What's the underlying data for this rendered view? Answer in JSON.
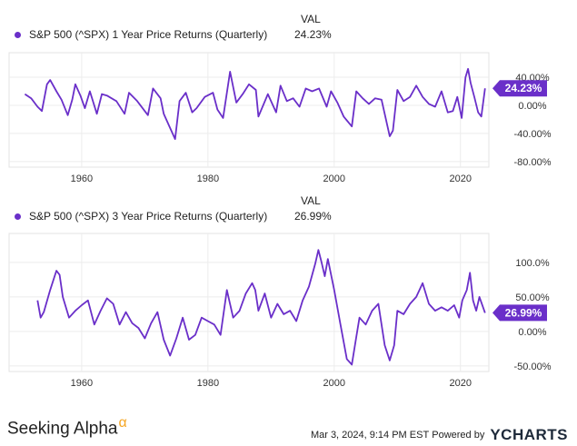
{
  "chart_data": [
    {
      "type": "line",
      "val_header": "VAL",
      "title": "S&P 500 (^SPX) 1 Year Price Returns (Quarterly)",
      "current_value": "24.23%",
      "color": "#6a2fc9",
      "x_ticks": [
        "1960",
        "1980",
        "2000",
        "2020"
      ],
      "x_tick_values": [
        1960,
        1980,
        2000,
        2020
      ],
      "xlim": [
        1948.5,
        2024.5
      ],
      "y_ticks": [
        "40.00%",
        "0.00%",
        "-40.00%",
        "-80.00%"
      ],
      "y_tick_values": [
        40,
        0,
        -40,
        -80
      ],
      "ylim": [
        -88,
        75
      ],
      "x": [
        1951,
        1952,
        1953,
        1953.7,
        1954.5,
        1955,
        1956,
        1956.8,
        1957.8,
        1958.5,
        1959,
        1959.8,
        1960.5,
        1961.3,
        1962.4,
        1963.2,
        1964,
        1965.5,
        1966.8,
        1967.5,
        1968.8,
        1970.5,
        1971.3,
        1972.5,
        1973,
        1974.8,
        1975.5,
        1976.5,
        1977.5,
        1978.2,
        1979.5,
        1980.8,
        1981.5,
        1982.4,
        1983.5,
        1984.5,
        1985.5,
        1986.5,
        1987.6,
        1988,
        1989.5,
        1990.8,
        1991.5,
        1992.5,
        1993.5,
        1994.5,
        1995.5,
        1996.5,
        1997.6,
        1998.8,
        1999.5,
        2000.5,
        2001.5,
        2002.8,
        2003.5,
        2004.5,
        2005.5,
        2006.5,
        2007.5,
        2008.8,
        2009.3,
        2010,
        2011,
        2012,
        2013,
        2014,
        2015,
        2016,
        2017,
        2018,
        2018.8,
        2019.5,
        2020.2,
        2020.8,
        2021.2,
        2021.6,
        2022.2,
        2022.8,
        2023.3,
        2023.9
      ],
      "values": [
        16,
        10,
        -2,
        -8,
        30,
        36,
        20,
        8,
        -14,
        8,
        30,
        14,
        -4,
        20,
        -12,
        16,
        14,
        6,
        -12,
        18,
        6,
        -14,
        24,
        10,
        -12,
        -48,
        6,
        18,
        -10,
        -4,
        12,
        18,
        -6,
        -18,
        48,
        4,
        16,
        30,
        22,
        -16,
        16,
        -10,
        28,
        6,
        10,
        -2,
        24,
        20,
        24,
        -2,
        20,
        4,
        -16,
        -30,
        20,
        10,
        2,
        10,
        8,
        -44,
        -36,
        22,
        6,
        12,
        28,
        12,
        2,
        -2,
        20,
        -10,
        -8,
        12,
        -18,
        40,
        52,
        32,
        12,
        -10,
        -16,
        24.23
      ],
      "annotation_value": 24.23
    },
    {
      "type": "line",
      "val_header": "VAL",
      "title": "S&P 500 (^SPX) 3 Year Price Returns (Quarterly)",
      "current_value": "26.99%",
      "color": "#6a2fc9",
      "x_ticks": [
        "1960",
        "1980",
        "2000",
        "2020"
      ],
      "x_tick_values": [
        1960,
        1980,
        2000,
        2020
      ],
      "xlim": [
        1948.5,
        2024.5
      ],
      "y_ticks": [
        "100.0%",
        "50.00%",
        "0.00%",
        "-50.00%"
      ],
      "y_tick_values": [
        100,
        50,
        0,
        -50
      ],
      "ylim": [
        -58,
        142
      ],
      "x": [
        1953,
        1953.5,
        1954,
        1955,
        1956,
        1956.5,
        1957,
        1958,
        1959,
        1960,
        1961,
        1962,
        1963,
        1964,
        1965,
        1966,
        1967,
        1968,
        1969,
        1970,
        1971,
        1972,
        1973,
        1974,
        1975,
        1976,
        1977,
        1978,
        1979,
        1980,
        1981,
        1982,
        1983,
        1984,
        1985,
        1986,
        1987,
        1987.5,
        1988,
        1989,
        1990,
        1991,
        1992,
        1993,
        1994,
        1995,
        1996,
        1997,
        1997.5,
        1998,
        1998.5,
        1999,
        2000,
        2001,
        2002,
        2002.8,
        2003.5,
        2004,
        2005,
        2006,
        2007,
        2008,
        2008.8,
        2009.5,
        2010,
        2011,
        2012,
        2013,
        2014,
        2015,
        2016,
        2017,
        2018,
        2019,
        2019.8,
        2020.3,
        2021,
        2021.5,
        2022,
        2022.5,
        2023,
        2023.9
      ],
      "values": [
        45,
        20,
        28,
        60,
        88,
        82,
        50,
        20,
        30,
        38,
        45,
        10,
        30,
        48,
        40,
        10,
        28,
        12,
        5,
        -10,
        12,
        28,
        -12,
        -35,
        -10,
        20,
        -12,
        -5,
        20,
        15,
        10,
        -5,
        60,
        20,
        30,
        55,
        70,
        60,
        30,
        55,
        20,
        40,
        25,
        30,
        15,
        45,
        65,
        98,
        118,
        100,
        80,
        105,
        60,
        10,
        -40,
        -48,
        -8,
        20,
        10,
        30,
        40,
        -20,
        -42,
        -20,
        30,
        25,
        40,
        50,
        70,
        40,
        30,
        35,
        30,
        38,
        20,
        45,
        60,
        85,
        45,
        30,
        50,
        26.99
      ],
      "annotation_value": 26.99
    }
  ],
  "footer": {
    "brand_left": "Seeking Alpha",
    "brand_symbol": "α",
    "timestamp": "Mar 3, 2024, 9:14 PM EST",
    "powered_by": "Powered by",
    "brand_right": "YCHARTS"
  },
  "colors": {
    "line": "#6a2fc9",
    "badge": "#6a2fc9",
    "alpha": "#f5a623"
  }
}
